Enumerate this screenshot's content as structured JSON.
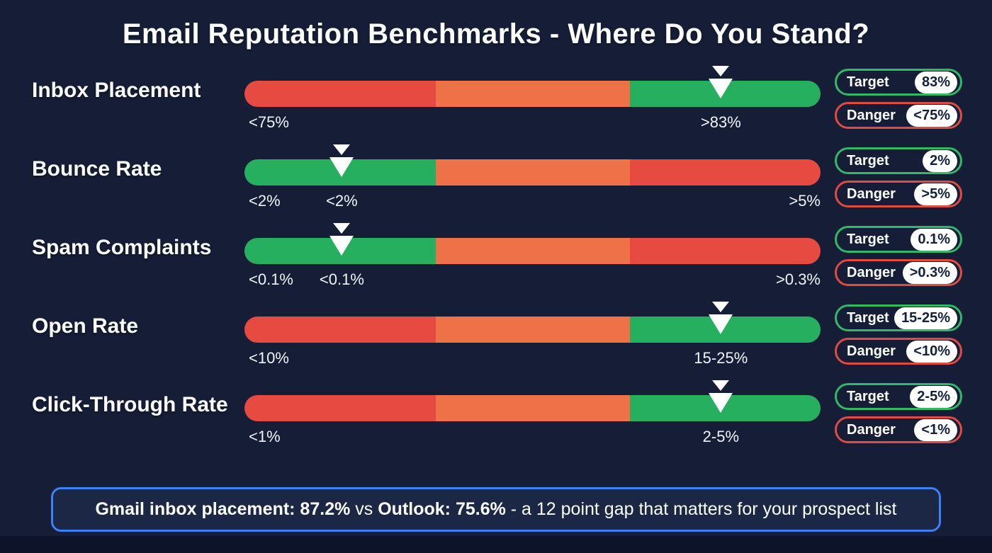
{
  "title": "Email Reputation Benchmarks - Where Do You Stand?",
  "badge_labels": {
    "target": "Target",
    "danger": "Danger"
  },
  "colors": {
    "background": "#161e37",
    "red": "#e64a40",
    "orange": "#ef7148",
    "green": "#25af5e",
    "target_border": "#2fba65",
    "danger_border": "#e14b41",
    "note_border": "#3b82f6",
    "note_background": "#1c2745",
    "bottom_strip": "#0d1329",
    "badge_value_text": "#13203c"
  },
  "rows": [
    {
      "label": "Inbox Placement",
      "segments": [
        "red",
        "orange",
        "green"
      ],
      "marker_pct": 82.7,
      "below_labels": [
        {
          "text": "<75%",
          "pct": 0,
          "anchor": "start"
        },
        {
          "text": ">83%",
          "pct": 82.7,
          "anchor": "center"
        }
      ],
      "target_value": "83%",
      "danger_value": "<75%"
    },
    {
      "label": "Bounce Rate",
      "segments": [
        "green",
        "orange",
        "red"
      ],
      "marker_pct": 16.9,
      "below_labels": [
        {
          "text": "<2%",
          "pct": 0,
          "anchor": "start"
        },
        {
          "text": "<2%",
          "pct": 16.9,
          "anchor": "center"
        },
        {
          "text": ">5%",
          "pct": 100,
          "anchor": "end"
        }
      ],
      "target_value": "2%",
      "danger_value": ">5%"
    },
    {
      "label": "Spam Complaints",
      "segments": [
        "green",
        "orange",
        "red"
      ],
      "marker_pct": 16.9,
      "below_labels": [
        {
          "text": "<0.1%",
          "pct": 0,
          "anchor": "start"
        },
        {
          "text": "<0.1%",
          "pct": 16.9,
          "anchor": "center"
        },
        {
          "text": ">0.3%",
          "pct": 100,
          "anchor": "end"
        }
      ],
      "target_value": "0.1%",
      "danger_value": ">0.3%"
    },
    {
      "label": "Open Rate",
      "segments": [
        "red",
        "orange",
        "green"
      ],
      "marker_pct": 82.7,
      "below_labels": [
        {
          "text": "<10%",
          "pct": 0,
          "anchor": "start"
        },
        {
          "text": "15-25%",
          "pct": 82.7,
          "anchor": "center"
        }
      ],
      "target_value": "15-25%",
      "danger_value": "<10%"
    },
    {
      "label": "Click-Through Rate",
      "segments": [
        "red",
        "orange",
        "green"
      ],
      "marker_pct": 82.7,
      "below_labels": [
        {
          "text": "<1%",
          "pct": 0,
          "anchor": "start"
        },
        {
          "text": "2-5%",
          "pct": 82.7,
          "anchor": "center"
        }
      ],
      "target_value": "2-5%",
      "danger_value": "<1%"
    }
  ],
  "note": {
    "bold1": "Gmail inbox placement: 87.2%",
    "sep1": " vs ",
    "bold2": "Outlook: 75.6%",
    "rest": " - a 12 point gap that matters for your prospect list"
  },
  "chart_data": {
    "type": "bar",
    "orientation": "horizontal",
    "title": "Email Reputation Benchmarks - Where Do You Stand?",
    "legend_position": "right",
    "metrics": [
      {
        "name": "Inbox Placement",
        "zone_colors_left_to_right": [
          "red",
          "orange",
          "green"
        ],
        "marker_zone": "green",
        "marker_position_pct": 82.7,
        "axis_labels": [
          "<75%",
          ">83%"
        ],
        "target_badge": "83%",
        "danger_badge": "<75%"
      },
      {
        "name": "Bounce Rate",
        "zone_colors_left_to_right": [
          "green",
          "orange",
          "red"
        ],
        "marker_zone": "green",
        "marker_position_pct": 16.9,
        "axis_labels": [
          "<2%",
          "<2%",
          ">5%"
        ],
        "target_badge": "2%",
        "danger_badge": ">5%"
      },
      {
        "name": "Spam Complaints",
        "zone_colors_left_to_right": [
          "green",
          "orange",
          "red"
        ],
        "marker_zone": "green",
        "marker_position_pct": 16.9,
        "axis_labels": [
          "<0.1%",
          "<0.1%",
          ">0.3%"
        ],
        "target_badge": "0.1%",
        "danger_badge": ">0.3%"
      },
      {
        "name": "Open Rate",
        "zone_colors_left_to_right": [
          "red",
          "orange",
          "green"
        ],
        "marker_zone": "green",
        "marker_position_pct": 82.7,
        "axis_labels": [
          "<10%",
          "15-25%"
        ],
        "target_badge": "15-25%",
        "danger_badge": "<10%"
      },
      {
        "name": "Click-Through Rate",
        "zone_colors_left_to_right": [
          "red",
          "orange",
          "green"
        ],
        "marker_zone": "green",
        "marker_position_pct": 82.7,
        "axis_labels": [
          "<1%",
          "2-5%"
        ],
        "target_badge": "2-5%",
        "danger_badge": "<1%"
      }
    ],
    "annotation": "Gmail inbox placement: 87.2% vs Outlook: 75.6% - a 12 point gap that matters for your prospect list",
    "annotation_values": {
      "gmail_inbox_placement_pct": 87.2,
      "outlook_inbox_placement_pct": 75.6,
      "gap_points": 12
    }
  }
}
